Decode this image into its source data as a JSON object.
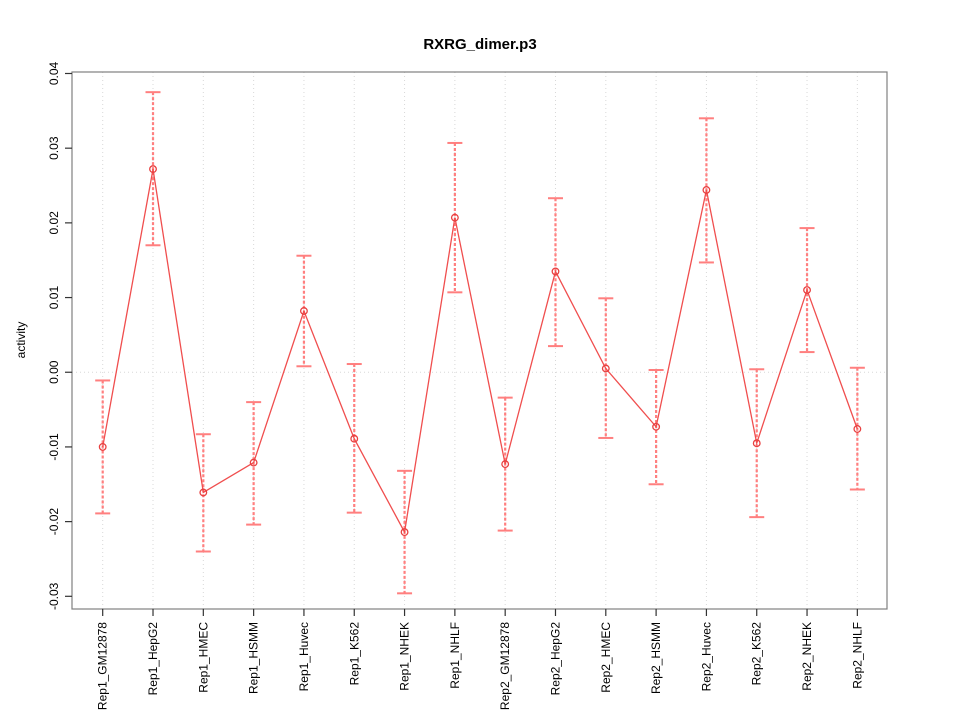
{
  "title": "RXRG_dimer.p3",
  "chart_data": {
    "type": "line",
    "title": "RXRG_dimer.p3",
    "xlabel": "",
    "ylabel": "activity",
    "ylim": [
      -0.0317,
      0.0402
    ],
    "yticks": [
      0.04,
      0.03,
      0.02,
      0.01,
      0.0,
      -0.01,
      -0.02,
      -0.03
    ],
    "ytick_labels": [
      "0.04",
      "0.03",
      "0.02",
      "0.01",
      "0.00",
      "-0.01",
      "-0.02",
      "-0.03"
    ],
    "legend": "none",
    "grid": "vertical dotted gridline at each category; horizontal dotted line at zero",
    "tick_label_rotation_deg": 90,
    "marker": "open-circle",
    "categories": [
      "Rep1_GM12878",
      "Rep1_HepG2",
      "Rep1_HMEC",
      "Rep1_HSMM",
      "Rep1_Huvec",
      "Rep1_K562",
      "Rep1_NHEK",
      "Rep1_NHLF",
      "Rep2_GM12878",
      "Rep2_HepG2",
      "Rep2_HMEC",
      "Rep2_HSMM",
      "Rep2_Huvec",
      "Rep2_K562",
      "Rep2_NHEK",
      "Rep2_NHLF"
    ],
    "series": [
      {
        "name": "activity",
        "values": [
          -0.01,
          0.0272,
          -0.0161,
          -0.0121,
          0.0082,
          -0.0089,
          -0.0214,
          0.0207,
          -0.0123,
          0.0135,
          0.0005,
          -0.0073,
          0.0244,
          -0.0095,
          0.011,
          -0.0076
        ],
        "error_upper": [
          -0.0011,
          0.0375,
          -0.0083,
          -0.004,
          0.0156,
          0.0011,
          -0.0132,
          0.0307,
          -0.0034,
          0.0233,
          0.0099,
          0.0003,
          0.034,
          0.0004,
          0.0193,
          0.0006
        ],
        "error_lower": [
          -0.0189,
          0.017,
          -0.024,
          -0.0204,
          0.0008,
          -0.0188,
          -0.0296,
          0.0107,
          -0.0212,
          0.0035,
          -0.0088,
          -0.015,
          0.0147,
          -0.0194,
          0.0027,
          -0.0157
        ]
      }
    ],
    "colors": {
      "line": "#f04e4e",
      "marker": "#e84040",
      "error_bar": "#ff7f7f",
      "grid": "#d8d8d8",
      "zero_line": "#d8d8d8",
      "frame": "#808080",
      "tick": "#333333",
      "text": "#000000",
      "background": "#ffffff"
    }
  }
}
